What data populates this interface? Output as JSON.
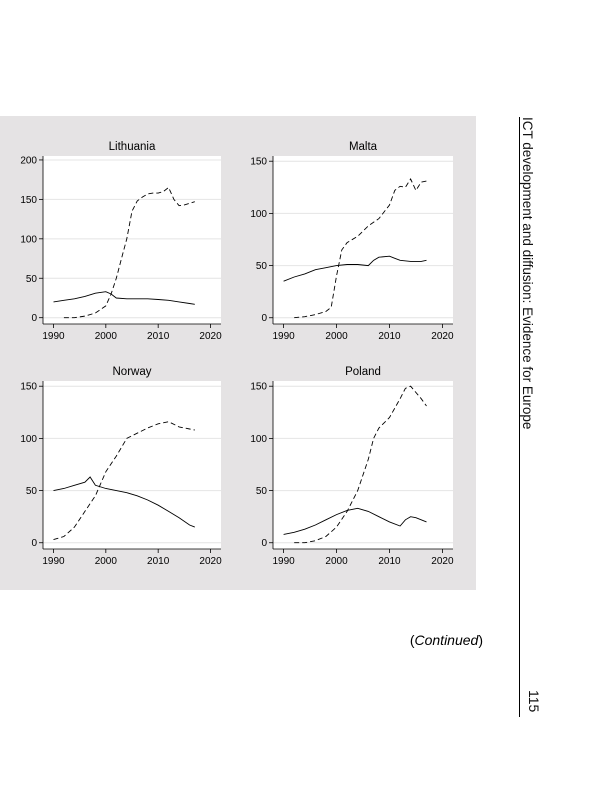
{
  "running_head": "ICT development and diffusion: Evidence for Europe",
  "page_number": "115",
  "continued": {
    "open": "(",
    "word": "Continued",
    "close": ")"
  },
  "chart_data": [
    {
      "type": "line",
      "title": "Lithuania",
      "xlim": [
        1988,
        2022
      ],
      "ylim": [
        -8,
        205
      ],
      "xticks": [
        1990,
        2000,
        2010,
        2020
      ],
      "yticks": [
        0,
        50,
        100,
        150,
        200
      ],
      "grid": true,
      "series": [
        {
          "style": "solid",
          "x": [
            1990,
            1992,
            1994,
            1996,
            1998,
            2000,
            2001,
            2002,
            2004,
            2006,
            2008,
            2010,
            2012,
            2014,
            2016,
            2017
          ],
          "y": [
            20,
            22,
            24,
            27,
            31,
            33,
            30,
            25,
            24,
            24,
            24,
            23,
            22,
            20,
            18,
            17
          ]
        },
        {
          "style": "dashed",
          "x": [
            1992,
            1994,
            1996,
            1998,
            2000,
            2001,
            2002,
            2003,
            2004,
            2005,
            2006,
            2007,
            2008,
            2009,
            2010,
            2011,
            2012,
            2013,
            2014,
            2015,
            2016,
            2017
          ],
          "y": [
            0,
            0,
            2,
            6,
            15,
            30,
            50,
            75,
            100,
            135,
            148,
            153,
            157,
            158,
            158,
            160,
            165,
            150,
            142,
            143,
            145,
            147
          ]
        }
      ]
    },
    {
      "type": "line",
      "title": "Malta",
      "xlim": [
        1988,
        2022
      ],
      "ylim": [
        -6,
        155
      ],
      "xticks": [
        1990,
        2000,
        2010,
        2020
      ],
      "yticks": [
        0,
        50,
        100,
        150
      ],
      "grid": true,
      "series": [
        {
          "style": "solid",
          "x": [
            1990,
            1992,
            1994,
            1996,
            1998,
            2000,
            2002,
            2004,
            2006,
            2007,
            2008,
            2010,
            2011,
            2012,
            2014,
            2016,
            2017
          ],
          "y": [
            35,
            39,
            42,
            46,
            48,
            50,
            51,
            51,
            50,
            55,
            58,
            59,
            57,
            55,
            54,
            54,
            55
          ]
        },
        {
          "style": "dashed",
          "x": [
            1992,
            1994,
            1996,
            1998,
            1999,
            2000,
            2001,
            2002,
            2004,
            2006,
            2008,
            2010,
            2011,
            2012,
            2013,
            2014,
            2015,
            2016,
            2017
          ],
          "y": [
            0,
            1,
            3,
            6,
            10,
            40,
            65,
            72,
            78,
            88,
            95,
            108,
            122,
            126,
            125,
            133,
            122,
            130,
            131
          ]
        }
      ]
    },
    {
      "type": "line",
      "title": "Norway",
      "xlim": [
        1988,
        2022
      ],
      "ylim": [
        -6,
        155
      ],
      "xticks": [
        1990,
        2000,
        2010,
        2020
      ],
      "yticks": [
        0,
        50,
        100,
        150
      ],
      "grid": true,
      "series": [
        {
          "style": "solid",
          "x": [
            1990,
            1992,
            1994,
            1996,
            1997,
            1998,
            2000,
            2002,
            2004,
            2006,
            2008,
            2010,
            2012,
            2014,
            2016,
            2017
          ],
          "y": [
            50,
            52,
            55,
            58,
            63,
            55,
            52,
            50,
            48,
            45,
            41,
            36,
            30,
            24,
            17,
            15
          ]
        },
        {
          "style": "dashed",
          "x": [
            1990,
            1992,
            1994,
            1996,
            1998,
            2000,
            2002,
            2004,
            2006,
            2008,
            2010,
            2012,
            2014,
            2016,
            2017
          ],
          "y": [
            3,
            6,
            15,
            30,
            45,
            68,
            83,
            100,
            105,
            110,
            114,
            116,
            111,
            109,
            108
          ]
        }
      ]
    },
    {
      "type": "line",
      "title": "Poland",
      "xlim": [
        1988,
        2022
      ],
      "ylim": [
        -6,
        155
      ],
      "xticks": [
        1990,
        2000,
        2010,
        2020
      ],
      "yticks": [
        0,
        50,
        100,
        150
      ],
      "grid": true,
      "series": [
        {
          "style": "solid",
          "x": [
            1990,
            1992,
            1994,
            1996,
            1998,
            2000,
            2002,
            2004,
            2006,
            2008,
            2010,
            2012,
            2013,
            2014,
            2015,
            2016,
            2017
          ],
          "y": [
            8,
            10,
            13,
            17,
            22,
            27,
            31,
            33,
            30,
            25,
            20,
            16,
            22,
            25,
            24,
            22,
            20
          ]
        },
        {
          "style": "dashed",
          "x": [
            1992,
            1994,
            1996,
            1998,
            2000,
            2002,
            2004,
            2006,
            2007,
            2008,
            2010,
            2012,
            2013,
            2014,
            2016,
            2017
          ],
          "y": [
            0,
            0,
            2,
            6,
            15,
            30,
            50,
            80,
            100,
            110,
            120,
            138,
            148,
            150,
            138,
            131
          ]
        }
      ]
    }
  ]
}
